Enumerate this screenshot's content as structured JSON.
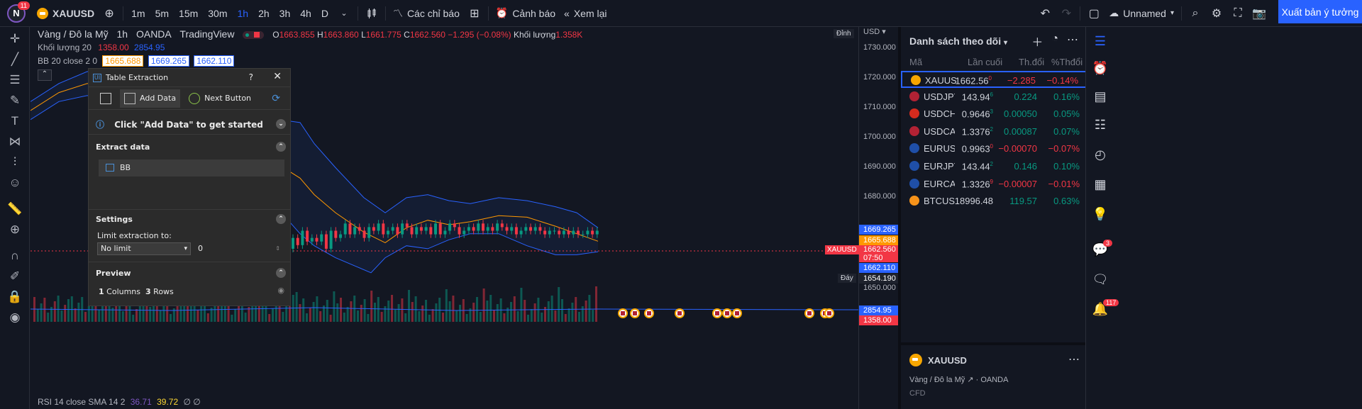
{
  "topbar": {
    "avatar_letter": "N",
    "avatar_badge": "11",
    "symbol": "XAUUSD",
    "timeframes": [
      "1m",
      "5m",
      "15m",
      "30m",
      "1h",
      "2h",
      "3h",
      "4h",
      "D"
    ],
    "active_timeframe": "1h",
    "indicators_label": "Các chỉ báo",
    "alerts_label": "Cảnh báo",
    "replay_label": "Xem lại",
    "layout_name": "Unnamed",
    "publish_label": "Xuất bản ý tưởng"
  },
  "legend": {
    "title": "Vàng / Đô la Mỹ",
    "interval": "1h",
    "exchange": "OANDA",
    "source": "TradingView",
    "o_label": "O",
    "o": "1663.855",
    "h_label": "H",
    "h": "1663.860",
    "l_label": "L",
    "l": "1661.775",
    "c_label": "C",
    "c": "1662.560",
    "change": "−1.295 (−0.08%)",
    "vol_label": "Khối lượng",
    "vol": "1.358K",
    "vol_ind_label": "Khối lượng 20",
    "vol_ind_v1": "1358.00",
    "vol_ind_v2": "2854.95",
    "bb_label": "BB 20 close 2 0",
    "bb_v1": "1665.688",
    "bb_v2": "1669.265",
    "bb_v3": "1662.110",
    "rsi_label": "RSI 14 close SMA 14 2",
    "rsi_v1": "36.71",
    "rsi_v2": "39.72",
    "rsi_v3": "∅ ∅"
  },
  "scale": {
    "currency": "USD",
    "top_label": "Đỉnh",
    "bottom_label": "Đáy",
    "ticks": [
      "1730.000",
      "1720.000",
      "1710.000",
      "1700.000",
      "1690.000",
      "1680.000",
      "1650.000"
    ],
    "upper_band": "1669.265",
    "middle_band": "1665.688",
    "price": "1662.560",
    "countdown": "07:50",
    "lower_band": "1662.110",
    "low": "1654.190",
    "vol_tag": "2854.95",
    "vol_tag2": "1358.00",
    "symbol_tag": "XAUUSD"
  },
  "watchlist": {
    "title": "Danh sách theo dõi",
    "columns": [
      "Mã",
      "Lần cuối",
      "Th.đổi",
      "%Thđổi"
    ],
    "rows": [
      {
        "symbol": "XAUUSD",
        "last": "1662.56",
        "last_sup": "0",
        "chg": "−2.285",
        "pct": "−0.14%",
        "dir": "neg",
        "color": "#f7a600"
      },
      {
        "symbol": "USDJPY",
        "last": "143.94",
        "last_sup": "6",
        "chg": "0.224",
        "pct": "0.16%",
        "dir": "pos",
        "color": "#b22234"
      },
      {
        "symbol": "USDCHF",
        "last": "0.9646",
        "last_sup": "3",
        "chg": "0.00050",
        "pct": "0.05%",
        "dir": "pos",
        "color": "#d52b1e"
      },
      {
        "symbol": "USDCAD",
        "last": "1.3376",
        "last_sup": "2",
        "chg": "0.00087",
        "pct": "0.07%",
        "dir": "pos",
        "color": "#b22234"
      },
      {
        "symbol": "EURUSD",
        "last": "0.9963",
        "last_sup": "0",
        "chg": "−0.00070",
        "pct": "−0.07%",
        "dir": "neg",
        "color": "#1f4fa8"
      },
      {
        "symbol": "EURJPY",
        "last": "143.44",
        "last_sup": "2",
        "chg": "0.146",
        "pct": "0.10%",
        "dir": "pos",
        "color": "#1f4fa8"
      },
      {
        "symbol": "EURCAD",
        "last": "1.3326",
        "last_sup": "9",
        "chg": "−0.00007",
        "pct": "−0.01%",
        "dir": "neg",
        "color": "#1f4fa8"
      },
      {
        "symbol": "BTCUSD",
        "last": "18996.48",
        "last_sup": "",
        "chg": "119.57",
        "pct": "0.63%",
        "dir": "pos",
        "color": "#f7931a"
      }
    ],
    "detail": {
      "symbol": "XAUUSD",
      "name": "Vàng / Đô la Mỹ",
      "exchange": "OANDA",
      "type": "CFD"
    }
  },
  "far_right": {
    "chat_badge": "3",
    "notif_badge": "117"
  },
  "dialog": {
    "title": "Table Extraction",
    "help": "?",
    "close": "✕",
    "add_data": "Add Data",
    "next_button": "Next Button",
    "banner": "Click \"Add Data\" to get started",
    "extract_title": "Extract data",
    "extract_item": "BB",
    "settings_title": "Settings",
    "limit_label": "Limit extraction to:",
    "limit_value": "No limit",
    "limit_number": "0",
    "preview_title": "Preview",
    "preview_cols": "1",
    "preview_cols_label": "Columns",
    "preview_rows": "3",
    "preview_rows_label": "Rows"
  }
}
